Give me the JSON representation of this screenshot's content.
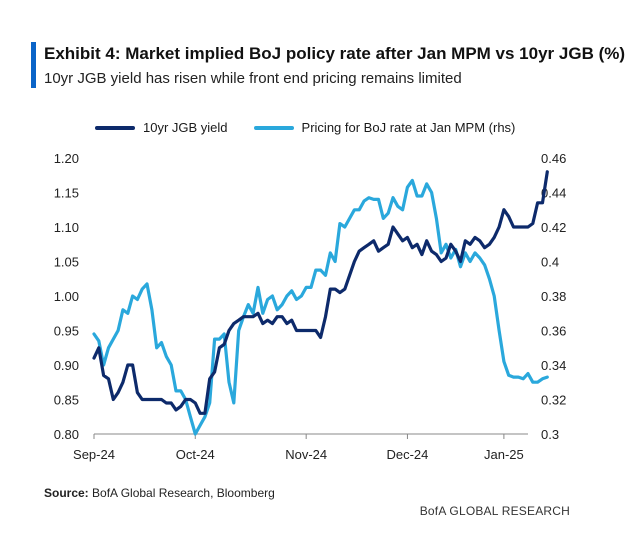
{
  "header": {
    "title": "Exhibit 4: Market implied BoJ policy rate after Jan MPM vs 10yr JGB (%)",
    "subtitle": "10yr JGB yield has risen while front end pricing remains limited"
  },
  "footer": {
    "source_label": "Source:",
    "source_text": " BofA Global Research, Bloomberg",
    "brand": "BofA GLOBAL RESEARCH"
  },
  "colors": {
    "accent": "#0a64c8",
    "jgb": "#0d2a6b",
    "boj": "#2aa8dc",
    "axis": "#888888"
  },
  "chart_data": {
    "type": "line",
    "title": "Exhibit 4: Market implied BoJ policy rate after Jan MPM vs 10yr JGB (%)",
    "x_ticks": [
      "Sep-24",
      "Oct-24",
      "Nov-24",
      "Dec-24",
      "Jan-25"
    ],
    "x_tick_pos": [
      0,
      21,
      44,
      65,
      85
    ],
    "x_range": [
      0,
      90
    ],
    "ylim_left": [
      0.8,
      1.2
    ],
    "ylim_right": [
      0.3,
      0.46
    ],
    "yticks_left": [
      "0.80",
      "0.85",
      "0.90",
      "0.95",
      "1.00",
      "1.05",
      "1.10",
      "1.15",
      "1.20"
    ],
    "yticks_right": [
      "0.3",
      "0.32",
      "0.34",
      "0.36",
      "0.38",
      "0.4",
      "0.42",
      "0.44",
      "0.46"
    ],
    "grid": false,
    "legend_position": "top",
    "series": [
      {
        "name": "10yr JGB yield",
        "axis": "left",
        "color": "#0d2a6b",
        "values": [
          0.91,
          0.925,
          0.885,
          0.88,
          0.85,
          0.86,
          0.875,
          0.9,
          0.9,
          0.86,
          0.85,
          0.85,
          0.85,
          0.85,
          0.85,
          0.845,
          0.845,
          0.835,
          0.84,
          0.85,
          0.85,
          0.845,
          0.83,
          0.83,
          0.88,
          0.89,
          0.925,
          0.93,
          0.95,
          0.96,
          0.965,
          0.97,
          0.97,
          0.97,
          0.975,
          0.96,
          0.965,
          0.96,
          0.97,
          0.97,
          0.96,
          0.965,
          0.95,
          0.95,
          0.95,
          0.95,
          0.95,
          0.94,
          0.97,
          1.01,
          1.01,
          1.005,
          1.01,
          1.03,
          1.05,
          1.065,
          1.07,
          1.075,
          1.08,
          1.065,
          1.07,
          1.075,
          1.1,
          1.09,
          1.08,
          1.085,
          1.07,
          1.075,
          1.06,
          1.08,
          1.065,
          1.06,
          1.05,
          1.055,
          1.075,
          1.065,
          1.05,
          1.08,
          1.075,
          1.085,
          1.08,
          1.07,
          1.075,
          1.085,
          1.1,
          1.125,
          1.115,
          1.1,
          1.1,
          1.1,
          1.1,
          1.105,
          1.135,
          1.135,
          1.18
        ]
      },
      {
        "name": "Pricing for BoJ rate at Jan MPM (rhs)",
        "axis": "right",
        "color": "#2aa8dc",
        "values": [
          0.358,
          0.354,
          0.34,
          0.35,
          0.355,
          0.36,
          0.372,
          0.37,
          0.38,
          0.378,
          0.384,
          0.387,
          0.372,
          0.35,
          0.353,
          0.345,
          0.34,
          0.325,
          0.325,
          0.32,
          0.31,
          0.3,
          0.305,
          0.31,
          0.318,
          0.355,
          0.355,
          0.358,
          0.33,
          0.318,
          0.36,
          0.368,
          0.375,
          0.37,
          0.385,
          0.37,
          0.378,
          0.38,
          0.372,
          0.375,
          0.38,
          0.383,
          0.378,
          0.38,
          0.385,
          0.385,
          0.395,
          0.395,
          0.392,
          0.405,
          0.4,
          0.422,
          0.42,
          0.425,
          0.43,
          0.43,
          0.435,
          0.437,
          0.436,
          0.436,
          0.425,
          0.428,
          0.437,
          0.432,
          0.43,
          0.443,
          0.447,
          0.438,
          0.438,
          0.445,
          0.44,
          0.425,
          0.405,
          0.41,
          0.402,
          0.407,
          0.397,
          0.405,
          0.4,
          0.405,
          0.402,
          0.398,
          0.39,
          0.38,
          0.36,
          0.342,
          0.334,
          0.333,
          0.333,
          0.332,
          0.335,
          0.33,
          0.33,
          0.332,
          0.333
        ]
      }
    ]
  }
}
